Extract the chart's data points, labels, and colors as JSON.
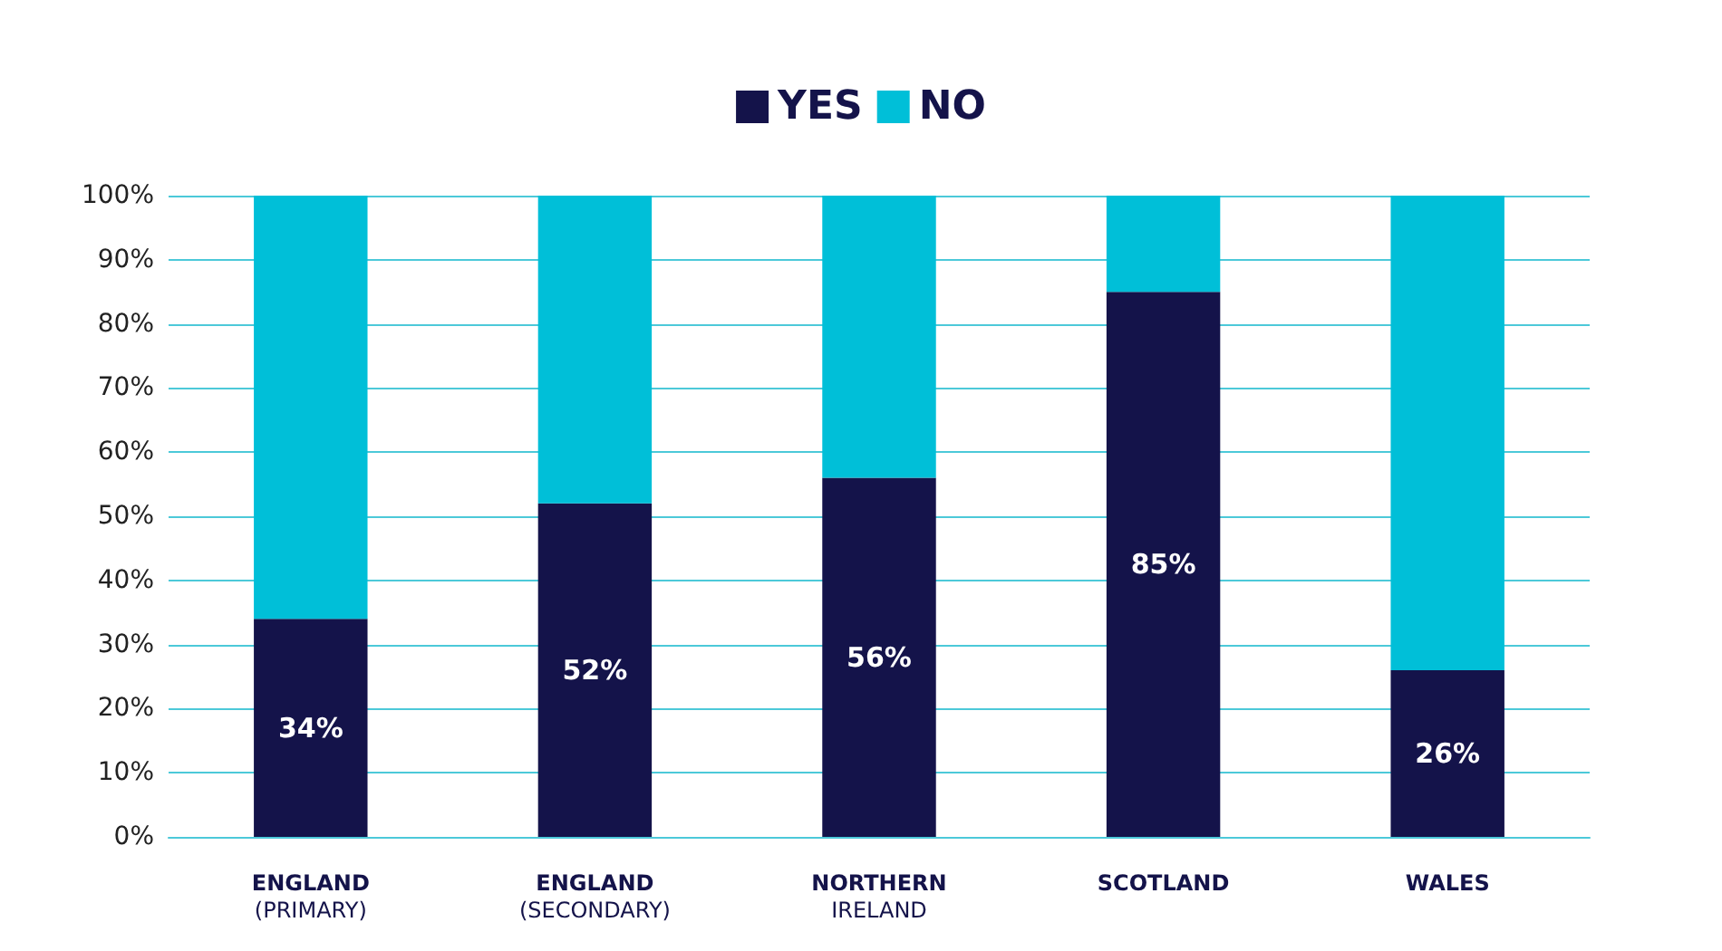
{
  "chart_data": {
    "type": "bar",
    "stacked": true,
    "categories": [
      "ENGLAND\n(PRIMARY)",
      "ENGLAND\n(SECONDARY)",
      "NORTHERN\nIRELAND",
      "SCOTLAND",
      "WALES"
    ],
    "series": [
      {
        "name": "YES",
        "color": "#14134a",
        "values": [
          34,
          52,
          56,
          85,
          26
        ],
        "value_labels": [
          "34%",
          "52%",
          "56%",
          "85%",
          "26%"
        ]
      },
      {
        "name": "NO",
        "color": "#00bfd8",
        "values": [
          66,
          48,
          44,
          15,
          74
        ]
      }
    ],
    "ylim": [
      0,
      100
    ],
    "yticks": [
      {
        "value": 0,
        "label": "0%"
      },
      {
        "value": 10,
        "label": "10%"
      },
      {
        "value": 20,
        "label": "20%"
      },
      {
        "value": 30,
        "label": "30%"
      },
      {
        "value": 40,
        "label": "40%"
      },
      {
        "value": 50,
        "label": "50%"
      },
      {
        "value": 60,
        "label": "60%"
      },
      {
        "value": 70,
        "label": "70%"
      },
      {
        "value": 80,
        "label": "80%"
      },
      {
        "value": 90,
        "label": "90%"
      },
      {
        "value": 100,
        "label": "100%"
      }
    ],
    "grid": "y",
    "legend": "top"
  }
}
